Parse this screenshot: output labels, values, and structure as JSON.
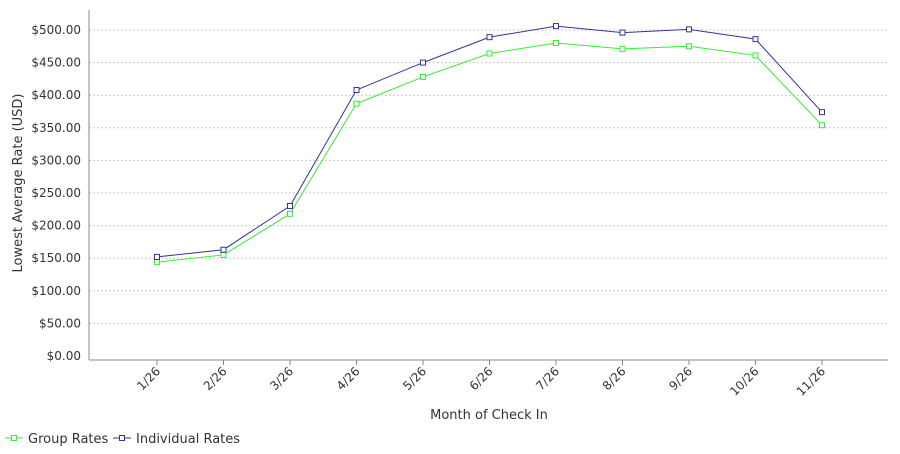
{
  "chart_data": {
    "type": "line",
    "title": "",
    "xlabel": "Month of Check In",
    "ylabel": "Lowest Average Rate (USD)",
    "categories": [
      "1/26",
      "2/26",
      "3/26",
      "4/26",
      "5/26",
      "6/26",
      "7/26",
      "8/26",
      "9/26",
      "10/26",
      "11/26"
    ],
    "ylim": [
      0,
      520
    ],
    "yticks": [
      0,
      50,
      100,
      150,
      200,
      250,
      300,
      350,
      400,
      450,
      500
    ],
    "ytick_labels": [
      "$0.00",
      "$50.00",
      "$100.00",
      "$150.00",
      "$200.00",
      "$250.00",
      "$300.00",
      "$350.00",
      "$400.00",
      "$450.00",
      "$500.00"
    ],
    "grid": true,
    "legend_position": "bottom-left",
    "series": [
      {
        "name": "Group Rates",
        "color": "#33ee33",
        "values": [
          144,
          155,
          218,
          387,
          428,
          464,
          480,
          471,
          475,
          461,
          354
        ]
      },
      {
        "name": "Individual Rates",
        "color": "#333399",
        "values": [
          152,
          163,
          230,
          408,
          450,
          489,
          506,
          496,
          501,
          486,
          374
        ]
      }
    ]
  }
}
